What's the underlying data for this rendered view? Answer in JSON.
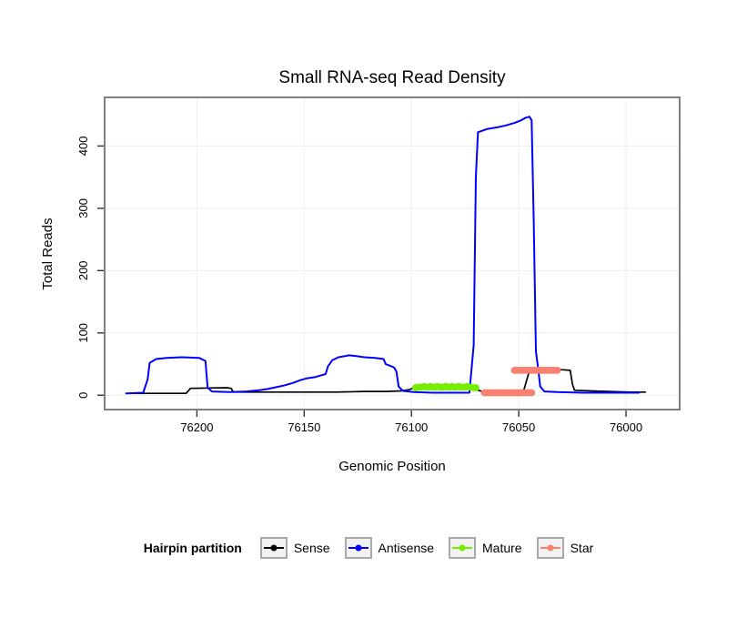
{
  "legend": {
    "title": "Hairpin partition",
    "entries": [
      {
        "label": "Sense",
        "color": "#000000"
      },
      {
        "label": "Antisense",
        "color": "#0000FF"
      },
      {
        "label": "Mature",
        "color": "#76EE00"
      },
      {
        "label": "Star",
        "color": "#FA8072"
      }
    ]
  },
  "colors": {
    "panel_border": "#808080",
    "grid": "#EFEFEF",
    "tick": "#333333",
    "background": "#FFFFFF"
  },
  "chart_data": {
    "type": "line",
    "title": "Small RNA-seq Read Density",
    "xlabel": "Genomic Position",
    "ylabel": "Total Reads",
    "x_axis_reversed": true,
    "x_ticks": [
      76200,
      76150,
      76100,
      76050,
      76000
    ],
    "y_ticks": [
      0,
      100,
      200,
      300,
      400
    ],
    "x_range": [
      76243,
      75975
    ],
    "y_range": [
      -23,
      478
    ],
    "grid": true,
    "legend_position": "bottom",
    "series": [
      {
        "name": "Sense",
        "color": "#000000",
        "style": "line",
        "line_width": 1.7,
        "points": [
          [
            76230,
            3
          ],
          [
            76205,
            3
          ],
          [
            76203,
            11
          ],
          [
            76186,
            12
          ],
          [
            76184,
            11
          ],
          [
            76183,
            5
          ],
          [
            76168,
            5
          ],
          [
            76150,
            5
          ],
          [
            76135,
            5
          ],
          [
            76122,
            6
          ],
          [
            76112,
            6
          ],
          [
            76105,
            7
          ],
          [
            76101,
            9
          ],
          [
            76099,
            12
          ],
          [
            76088,
            13
          ],
          [
            76078,
            13
          ],
          [
            76073,
            12
          ],
          [
            76070,
            9
          ],
          [
            76067,
            6
          ],
          [
            76058,
            5
          ],
          [
            76048,
            4
          ],
          [
            76046,
            28
          ],
          [
            76045,
            39
          ],
          [
            76043,
            42
          ],
          [
            76038,
            41
          ],
          [
            76030,
            41
          ],
          [
            76026,
            40
          ],
          [
            76025,
            18
          ],
          [
            76024,
            8
          ],
          [
            76016,
            7
          ],
          [
            76008,
            6
          ],
          [
            75998,
            5
          ],
          [
            75991,
            5
          ]
        ]
      },
      {
        "name": "Antisense",
        "color": "#0000FF",
        "style": "line",
        "line_width": 2,
        "points": [
          [
            76233,
            3
          ],
          [
            76225,
            4
          ],
          [
            76223,
            25
          ],
          [
            76222,
            52
          ],
          [
            76219,
            58
          ],
          [
            76214,
            60
          ],
          [
            76207,
            61
          ],
          [
            76199,
            60
          ],
          [
            76196,
            55
          ],
          [
            76195,
            12
          ],
          [
            76193,
            6
          ],
          [
            76185,
            5
          ],
          [
            76177,
            6
          ],
          [
            76171,
            8
          ],
          [
            76167,
            10
          ],
          [
            76163,
            13
          ],
          [
            76159,
            16
          ],
          [
            76155,
            20
          ],
          [
            76152,
            24
          ],
          [
            76149,
            27
          ],
          [
            76145,
            29
          ],
          [
            76142,
            32
          ],
          [
            76140,
            34
          ],
          [
            76139,
            46
          ],
          [
            76137,
            56
          ],
          [
            76134,
            61
          ],
          [
            76129,
            64
          ],
          [
            76126,
            63
          ],
          [
            76122,
            61
          ],
          [
            76117,
            60
          ],
          [
            76113,
            58
          ],
          [
            76112,
            50
          ],
          [
            76109,
            46
          ],
          [
            76108,
            44
          ],
          [
            76107,
            38
          ],
          [
            76106,
            14
          ],
          [
            76104,
            7
          ],
          [
            76099,
            5
          ],
          [
            76090,
            4
          ],
          [
            76080,
            4
          ],
          [
            76073,
            4
          ],
          [
            76071,
            80
          ],
          [
            76070,
            350
          ],
          [
            76069,
            422
          ],
          [
            76065,
            427
          ],
          [
            76060,
            430
          ],
          [
            76056,
            433
          ],
          [
            76052,
            437
          ],
          [
            76049,
            441
          ],
          [
            76047,
            445
          ],
          [
            76045,
            447
          ],
          [
            76044,
            441
          ],
          [
            76043,
            280
          ],
          [
            76042,
            70
          ],
          [
            76041,
            44
          ],
          [
            76040,
            14
          ],
          [
            76038,
            6
          ],
          [
            76032,
            5
          ],
          [
            76020,
            4
          ],
          [
            76005,
            4
          ],
          [
            75994,
            4
          ]
        ]
      },
      {
        "name": "Mature",
        "color": "#76EE00",
        "style": "points",
        "point_radius": 3.4,
        "points": [
          [
            76098,
            12
          ],
          [
            76097,
            13
          ],
          [
            76096,
            13
          ],
          [
            76095,
            13
          ],
          [
            76094,
            14
          ],
          [
            76093,
            13
          ],
          [
            76092,
            13
          ],
          [
            76091,
            14
          ],
          [
            76090,
            13
          ],
          [
            76089,
            13
          ],
          [
            76088,
            14
          ],
          [
            76087,
            13
          ],
          [
            76086,
            13
          ],
          [
            76085,
            13
          ],
          [
            76084,
            14
          ],
          [
            76083,
            13
          ],
          [
            76082,
            13
          ],
          [
            76081,
            14
          ],
          [
            76080,
            13
          ],
          [
            76079,
            13
          ],
          [
            76078,
            14
          ],
          [
            76077,
            13
          ],
          [
            76076,
            13
          ],
          [
            76075,
            13
          ],
          [
            76074,
            14
          ],
          [
            76073,
            13
          ],
          [
            76072,
            13
          ],
          [
            76071,
            12
          ],
          [
            76070,
            12
          ]
        ]
      },
      {
        "name": "Star",
        "color": "#FA8072",
        "style": "points",
        "point_radius": 3.4,
        "points": [
          [
            76066,
            4
          ],
          [
            76065,
            4
          ],
          [
            76064,
            4
          ],
          [
            76063,
            4
          ],
          [
            76062,
            4
          ],
          [
            76061,
            4
          ],
          [
            76060,
            4
          ],
          [
            76059,
            4
          ],
          [
            76058,
            4
          ],
          [
            76057,
            4
          ],
          [
            76056,
            4
          ],
          [
            76055,
            4
          ],
          [
            76054,
            4
          ],
          [
            76053,
            4
          ],
          [
            76052,
            4
          ],
          [
            76051,
            4
          ],
          [
            76050,
            4
          ],
          [
            76049,
            4
          ],
          [
            76048,
            4
          ],
          [
            76047,
            4
          ],
          [
            76046,
            4
          ],
          [
            76045,
            4
          ],
          [
            76044,
            4
          ],
          [
            76052,
            40
          ],
          [
            76051,
            40
          ],
          [
            76050,
            40
          ],
          [
            76049,
            40
          ],
          [
            76048,
            40
          ],
          [
            76047,
            40
          ],
          [
            76046,
            40
          ],
          [
            76045,
            40
          ],
          [
            76044,
            40
          ],
          [
            76043,
            40
          ],
          [
            76042,
            40
          ],
          [
            76041,
            40
          ],
          [
            76040,
            40
          ],
          [
            76039,
            40
          ],
          [
            76038,
            40
          ],
          [
            76037,
            40
          ],
          [
            76036,
            40
          ],
          [
            76035,
            40
          ],
          [
            76034,
            40
          ],
          [
            76033,
            40
          ],
          [
            76032,
            40
          ]
        ]
      }
    ]
  }
}
